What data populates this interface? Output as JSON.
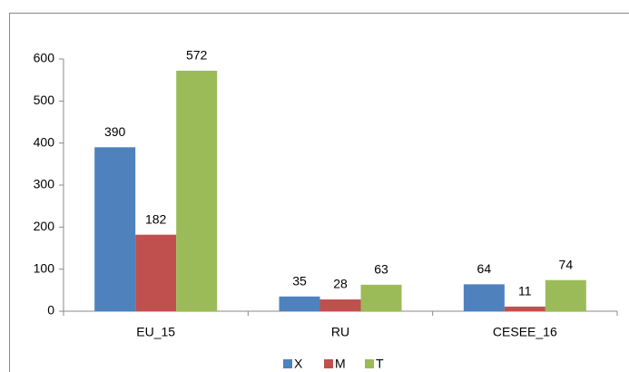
{
  "chart_data": {
    "type": "bar",
    "categories": [
      "EU_15",
      "RU",
      "CESEE_16"
    ],
    "series": [
      {
        "name": "X",
        "color": "#4f81bd",
        "values": [
          390,
          35,
          64
        ]
      },
      {
        "name": "M",
        "color": "#c0504d",
        "values": [
          182,
          28,
          11
        ]
      },
      {
        "name": "T",
        "color": "#9bbb59",
        "values": [
          572,
          63,
          74
        ]
      }
    ],
    "ylim": [
      0,
      600
    ],
    "yticks": [
      0,
      100,
      200,
      300,
      400,
      500,
      600
    ],
    "grid": false,
    "legend": "bottom"
  }
}
